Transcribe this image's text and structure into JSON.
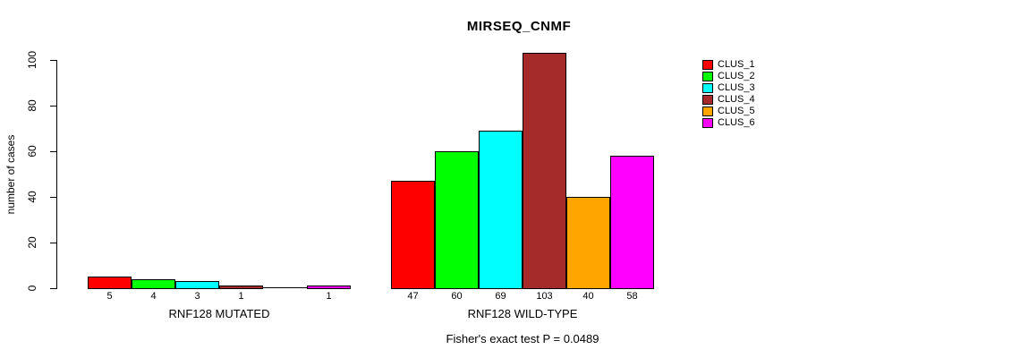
{
  "chart": {
    "title": "MIRSEQ_CNMF",
    "ylabel": "number of cases",
    "footnote": "Fisher's exact test P = 0.0489"
  },
  "chart_data": {
    "type": "bar",
    "title": "MIRSEQ_CNMF",
    "xlabel": "",
    "ylabel": "number of cases",
    "ylim": [
      0,
      100
    ],
    "yticks": [
      0,
      20,
      40,
      60,
      80,
      100
    ],
    "grid": false,
    "legend_position": "right",
    "legend": [
      "CLUS_1",
      "CLUS_2",
      "CLUS_3",
      "CLUS_4",
      "CLUS_5",
      "CLUS_6"
    ],
    "colors": [
      "#ff0000",
      "#00ff00",
      "#00ffff",
      "#a52a2a",
      "#ffa500",
      "#ff00ff"
    ],
    "groups": [
      {
        "label": "RNF128 MUTATED",
        "categories": [
          "CLUS_1",
          "CLUS_2",
          "CLUS_3",
          "CLUS_4",
          "CLUS_5",
          "CLUS_6"
        ],
        "values": [
          5,
          4,
          3,
          1,
          0,
          1
        ],
        "bar_labels": [
          "5",
          "4",
          "3",
          "1",
          "",
          "1"
        ]
      },
      {
        "label": "RNF128 WILD-TYPE",
        "categories": [
          "CLUS_1",
          "CLUS_2",
          "CLUS_3",
          "CLUS_4",
          "CLUS_5",
          "CLUS_6"
        ],
        "values": [
          47,
          60,
          69,
          103,
          40,
          58
        ],
        "bar_labels": [
          "47",
          "60",
          "69",
          "103",
          "40",
          "58"
        ]
      }
    ],
    "annotation": "Fisher's exact test P = 0.0489"
  }
}
